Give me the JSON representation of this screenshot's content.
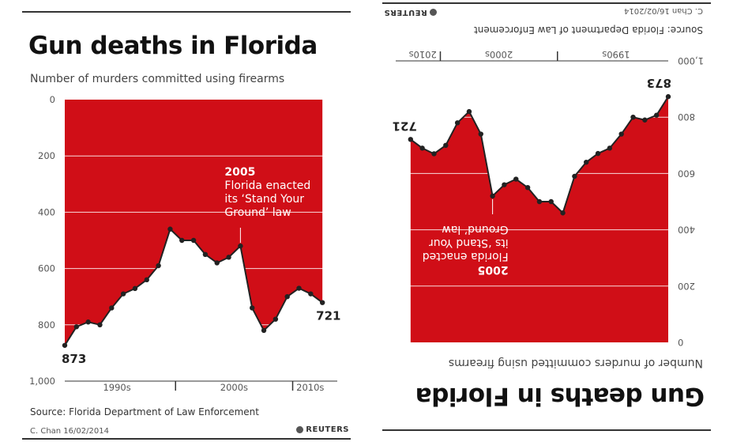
{
  "title": "Gun deaths in Florida",
  "subtitle": "Number of murders committed using firearms",
  "source": "Source: Florida Department of Law Enforcement",
  "byline": "C. Chan 16/02/2014",
  "logo": "REUTERS",
  "colors": {
    "fill": "#d00e17",
    "line": "#222222",
    "grid": "#ffffff"
  },
  "chart_data": {
    "type": "area",
    "title": "Gun deaths in Florida",
    "ylabel": "Number of murders committed using firearms",
    "y_axis_inverted": true,
    "ylim": [
      0,
      1000
    ],
    "yticks": [
      0,
      200,
      400,
      600,
      800,
      1000
    ],
    "xlim": [
      1990,
      2013
    ],
    "x_groups": [
      "1990s",
      "2000s",
      "2010s"
    ],
    "x": [
      1990,
      1991,
      1992,
      1993,
      1994,
      1995,
      1996,
      1997,
      1998,
      1999,
      2000,
      2001,
      2002,
      2003,
      2004,
      2005,
      2006,
      2007,
      2008,
      2009,
      2010,
      2011,
      2012
    ],
    "values": [
      873,
      807,
      790,
      800,
      740,
      690,
      671,
      640,
      590,
      460,
      500,
      500,
      550,
      580,
      560,
      520,
      740,
      820,
      780,
      700,
      670,
      690,
      721
    ],
    "labels": [
      {
        "x": 1990,
        "value": 873,
        "text": "873"
      },
      {
        "x": 2012,
        "value": 721,
        "text": "721"
      }
    ],
    "annotation": {
      "year_text": "2005",
      "lines": [
        "Florida enacted",
        "its ‘Stand Your",
        "Ground’ law"
      ],
      "x": 2005,
      "value": 520
    }
  }
}
